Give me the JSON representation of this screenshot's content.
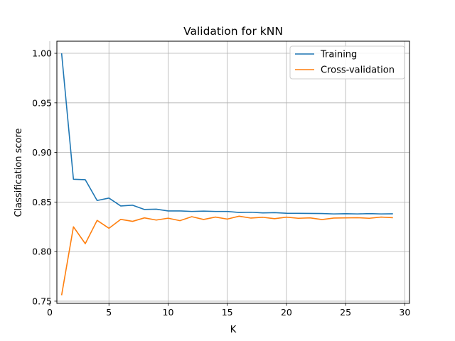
{
  "chart_data": {
    "type": "line",
    "title": "Validation for kNN",
    "xlabel": "K",
    "ylabel": "Classification score",
    "xlim": [
      0.6,
      30.4
    ],
    "ylim": [
      0.7478,
      1.0122
    ],
    "xticks": [
      0,
      5,
      10,
      15,
      20,
      25,
      30
    ],
    "yticks": [
      0.75,
      0.8,
      0.85,
      0.9,
      0.95,
      1.0
    ],
    "ytick_labels": [
      "0.75",
      "0.80",
      "0.85",
      "0.90",
      "0.95",
      "1.00"
    ],
    "grid": true,
    "legend_position": "top-right",
    "x": [
      1,
      2,
      3,
      4,
      5,
      6,
      7,
      8,
      9,
      10,
      11,
      12,
      13,
      14,
      15,
      16,
      17,
      18,
      19,
      20,
      21,
      22,
      23,
      24,
      25,
      26,
      27,
      28,
      29
    ],
    "series": [
      {
        "name": "Training",
        "color": "#1f77b4",
        "values": [
          1.0,
          0.873,
          0.8725,
          0.8515,
          0.854,
          0.846,
          0.8468,
          0.8425,
          0.8428,
          0.841,
          0.841,
          0.8405,
          0.8408,
          0.8405,
          0.8405,
          0.8395,
          0.8397,
          0.839,
          0.8393,
          0.8387,
          0.8386,
          0.8385,
          0.8384,
          0.838,
          0.8382,
          0.838,
          0.8383,
          0.838,
          0.8381
        ]
      },
      {
        "name": "Cross-validation",
        "color": "#ff7f0e",
        "values": [
          0.756,
          0.825,
          0.808,
          0.8315,
          0.8235,
          0.8325,
          0.8305,
          0.834,
          0.8318,
          0.8337,
          0.8312,
          0.8352,
          0.8324,
          0.8348,
          0.8328,
          0.8357,
          0.8338,
          0.8346,
          0.8332,
          0.8347,
          0.8336,
          0.834,
          0.8323,
          0.8338,
          0.834,
          0.8342,
          0.8336,
          0.8348,
          0.8342
        ]
      }
    ]
  }
}
